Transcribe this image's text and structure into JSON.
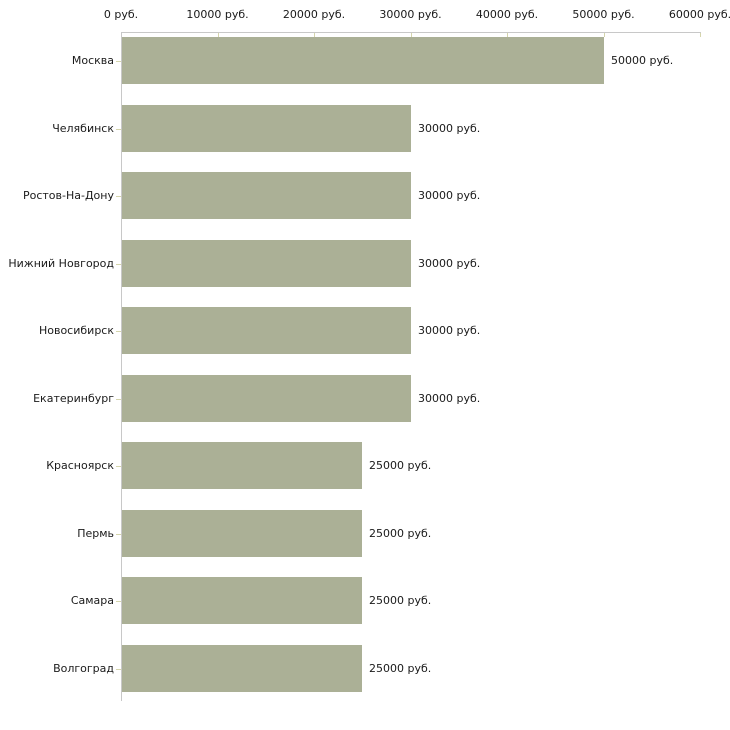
{
  "chart_data": {
    "type": "bar",
    "orientation": "horizontal",
    "title": "",
    "xlabel": "",
    "ylabel": "",
    "unit": "руб.",
    "categories": [
      "Москва",
      "Челябинск",
      "Ростов-На-Дону",
      "Нижний Новгород",
      "Новосибирск",
      "Екатеринбург",
      "Красноярск",
      "Пермь",
      "Самара",
      "Волгоград"
    ],
    "values": [
      50000,
      30000,
      30000,
      30000,
      30000,
      30000,
      25000,
      25000,
      25000,
      25000
    ],
    "bar_labels": [
      "50000 руб.",
      "30000 руб.",
      "30000 руб.",
      "30000 руб.",
      "30000 руб.",
      "30000 руб.",
      "25000 руб.",
      "25000 руб.",
      "25000 руб.",
      "25000 руб."
    ],
    "x_ticks": [
      0,
      10000,
      20000,
      30000,
      40000,
      50000,
      60000
    ],
    "x_tick_labels": [
      "0 руб.",
      "10000 руб.",
      "20000 руб.",
      "30000 руб.",
      "40000 руб.",
      "50000 руб.",
      "60000 руб."
    ],
    "xlim": [
      0,
      60000
    ],
    "grid": false,
    "legend": "none",
    "axis_position": "top-left"
  },
  "colors": {
    "bar": "#abb096",
    "axis_line": "#c8c8c8",
    "tick_mark": "#d5d5ac",
    "text": "#1a1a1a",
    "background": "#ffffff"
  }
}
